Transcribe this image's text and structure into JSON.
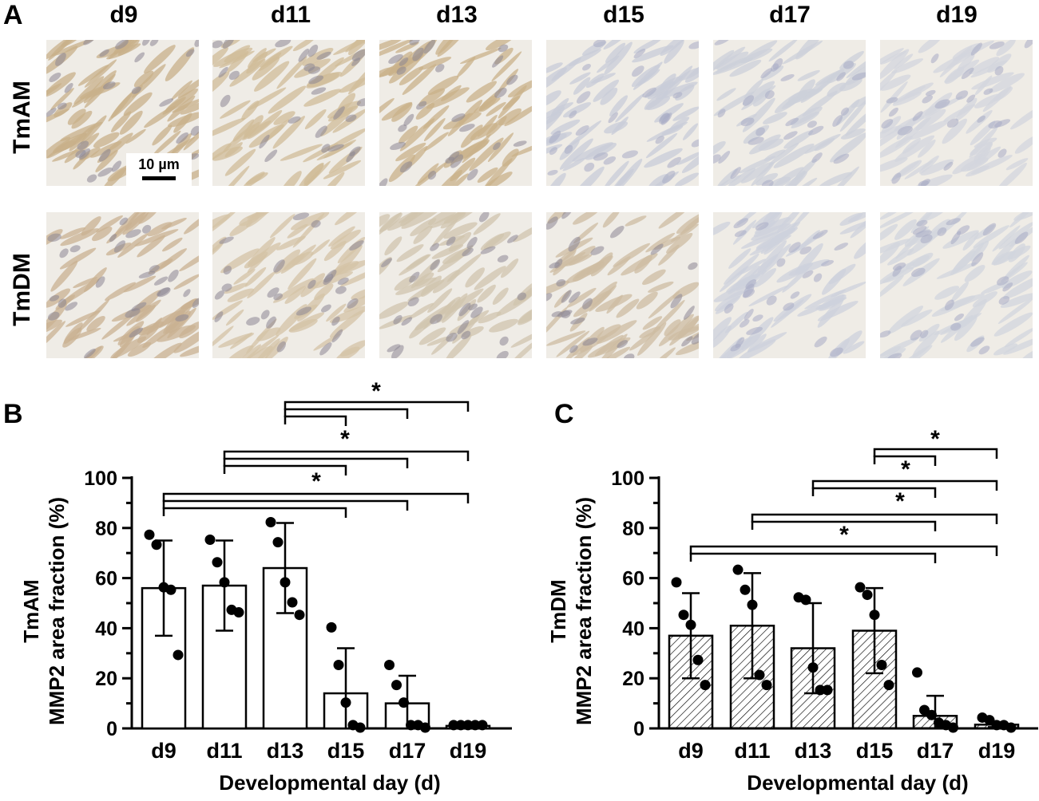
{
  "panel_a": {
    "letter": "A",
    "columns": [
      "d9",
      "d11",
      "d13",
      "d15",
      "d17",
      "d19"
    ],
    "rows": [
      "TmAM",
      "TmDM"
    ],
    "scale_bar_label": "10 µm",
    "stain": {
      "TmAM": [
        "#c8b08a",
        "#d0bc98",
        "#c9b28a",
        "#c8ccd8",
        "#ccd0da",
        "#d3d6de"
      ],
      "TmDM": [
        "#c9b291",
        "#d4c3a6",
        "#d0c4ae",
        "#cdbca1",
        "#cdd1dc",
        "#d2d5dd"
      ]
    }
  },
  "chart_data": [
    {
      "panel": "B",
      "type": "bar",
      "ylabel_top": "TmAM",
      "ylabel": "MMP2 area fraction (%)",
      "xlabel": "Developmental day (d)",
      "categories": [
        "d9",
        "d11",
        "d13",
        "d15",
        "d17",
        "d19"
      ],
      "ylim": [
        0,
        100
      ],
      "yticks": [
        "0",
        "20",
        "40",
        "60",
        "80",
        "100"
      ],
      "fill": "open",
      "means": [
        56,
        57,
        64,
        14,
        10,
        1
      ],
      "sd": [
        19,
        18,
        18,
        18,
        11,
        0.5
      ],
      "points": [
        [
          77,
          73,
          56,
          55,
          29
        ],
        [
          75,
          66,
          58,
          47,
          46
        ],
        [
          82,
          74,
          58,
          50,
          45
        ],
        [
          40,
          25,
          10,
          1,
          0
        ],
        [
          25,
          17,
          10,
          1,
          1,
          0
        ],
        [
          1,
          1,
          1,
          1,
          1
        ]
      ],
      "significance": [
        {
          "from": "d13",
          "to": [
            "d15",
            "d17",
            "d19"
          ],
          "label": "*"
        },
        {
          "from": "d11",
          "to": [
            "d15",
            "d17",
            "d19"
          ],
          "label": "*"
        },
        {
          "from": "d9",
          "to": [
            "d15",
            "d17",
            "d19"
          ],
          "label": "*"
        }
      ]
    },
    {
      "panel": "C",
      "type": "bar",
      "ylabel_top": "TmDM",
      "ylabel": "MMP2 area fraction (%)",
      "xlabel": "Developmental day (d)",
      "categories": [
        "d9",
        "d11",
        "d13",
        "d15",
        "d17",
        "d19"
      ],
      "ylim": [
        0,
        100
      ],
      "yticks": [
        "0",
        "20",
        "40",
        "60",
        "80",
        "100"
      ],
      "fill": "hatched",
      "means": [
        37,
        41,
        32,
        39,
        5,
        1.5
      ],
      "sd": [
        17,
        21,
        18,
        17,
        8,
        1
      ],
      "points": [
        [
          58,
          45,
          41,
          27,
          17
        ],
        [
          63,
          55,
          49,
          21,
          17
        ],
        [
          52,
          51,
          24,
          15,
          15
        ],
        [
          56,
          53,
          45,
          25,
          17
        ],
        [
          22,
          7,
          5,
          2,
          1,
          0
        ],
        [
          4,
          3,
          1,
          1,
          0
        ]
      ],
      "significance": [
        {
          "from": "d15",
          "to": [
            "d17",
            "d19"
          ],
          "label": "*"
        },
        {
          "from": "d13",
          "to": [
            "d17",
            "d19"
          ],
          "label": "*"
        },
        {
          "from": "d11",
          "to": [
            "d17",
            "d19"
          ],
          "label": "*"
        },
        {
          "from": "d9",
          "to": [
            "d17",
            "d19"
          ],
          "label": "*"
        }
      ]
    }
  ]
}
